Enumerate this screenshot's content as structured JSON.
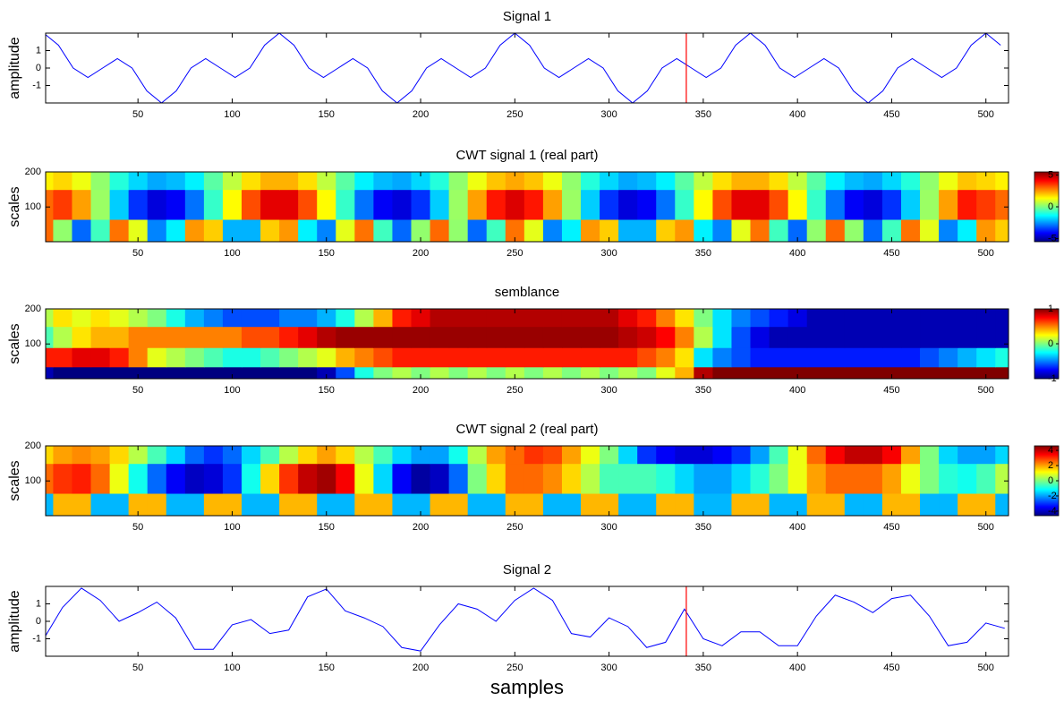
{
  "chart_data": [
    {
      "type": "line",
      "title": "Signal 1",
      "ylabel": "amplitude",
      "color": "#0000ff",
      "marker_x": 341,
      "marker_color": "#ff0000",
      "x": [
        0,
        7.8125,
        15.625,
        23.4375,
        31.25,
        39.0625,
        46.875,
        54.6875,
        62.5,
        70.3125,
        78.125,
        85.9375,
        93.75,
        101.5625,
        109.375,
        117.1875,
        125,
        132.8125,
        140.625,
        148.4375,
        156.25,
        164.0625,
        171.875,
        179.6875,
        187.5,
        195.3125,
        203.125,
        210.9375,
        218.75,
        226.5625,
        234.375,
        242.1875,
        250,
        257.8125,
        265.625,
        273.4375,
        281.25,
        289.0625,
        296.875,
        304.6875,
        312.5,
        320.3125,
        328.125,
        335.9375,
        343.75,
        351.5625,
        359.375,
        367.1875,
        375,
        382.8125,
        390.625,
        398.4375,
        406.25,
        414.0625,
        421.875,
        429.6875,
        437.5,
        445.3125,
        453.125,
        460.9375,
        468.75,
        476.5625,
        484.375,
        492.1875,
        500,
        507.8125
      ],
      "values": [
        2,
        1.31,
        0,
        -0.54,
        0,
        0.54,
        0,
        -1.31,
        -2,
        -1.31,
        0,
        0.54,
        0,
        -0.54,
        0,
        1.31,
        2,
        1.31,
        0,
        -0.54,
        0,
        0.54,
        0,
        -1.31,
        -2,
        -1.31,
        0,
        0.54,
        0,
        -0.54,
        0,
        1.31,
        2,
        1.31,
        0,
        -0.54,
        0,
        0.54,
        0,
        -1.31,
        -2,
        -1.31,
        0,
        0.54,
        0,
        -0.54,
        0,
        1.31,
        2,
        1.31,
        0,
        -0.54,
        0,
        0.54,
        0,
        -1.31,
        -2,
        -1.31,
        0,
        0.54,
        0,
        -0.54,
        0,
        1.31,
        2,
        1.31
      ],
      "xlim": [
        1,
        512
      ],
      "xticks": [
        50,
        100,
        150,
        200,
        250,
        300,
        350,
        400,
        450,
        500
      ],
      "ylim": [
        -2,
        2
      ],
      "yticks": [
        -1,
        0,
        1
      ]
    },
    {
      "type": "heatmap",
      "title": "CWT signal 1 (real part)",
      "ylabel": "scales",
      "colormap": "jet",
      "x": [
        0,
        10,
        20,
        30,
        40,
        50,
        60,
        70,
        80,
        90,
        100,
        110,
        120,
        130,
        140,
        150,
        160,
        170,
        180,
        190,
        200,
        210,
        220,
        230,
        240,
        250,
        260,
        270,
        280,
        290,
        300,
        310,
        320,
        330,
        340,
        350,
        360,
        370,
        380,
        390,
        400,
        410,
        420,
        430,
        440,
        450,
        460,
        470,
        480,
        490,
        500,
        510
      ],
      "ybins": [
        1,
        65,
        150,
        200
      ],
      "z": [
        [
          3,
          0.2,
          -3,
          -0.7,
          2.9,
          1.1,
          -2.7,
          -1.5,
          2.5,
          1.9,
          -2.2,
          -2.2,
          1.9,
          2.5,
          -1.5,
          -2.7,
          1.1,
          2.9,
          -0.7,
          -3,
          0.2,
          3,
          0.2,
          -3,
          -0.7,
          2.9,
          1.1,
          -2.7,
          -1.5,
          2.5,
          1.9,
          -2.2,
          -2.2,
          1.9,
          2.5,
          -1.5,
          -2.7,
          1.1,
          2.9,
          -0.7,
          -3,
          0.2,
          3,
          0.2,
          -3,
          -0.7,
          2.9,
          1.1,
          -2.7,
          -1.5,
          2.5,
          1.9
        ],
        [
          3,
          3.5,
          2.4,
          0.3,
          -1.9,
          -3.6,
          -4.5,
          -4.2,
          -2.9,
          -0.8,
          1.4,
          3.3,
          4.4,
          4.4,
          3.3,
          1.4,
          -0.8,
          -2.9,
          -4.2,
          -4.5,
          -3.6,
          -1.9,
          0.3,
          2.4,
          3.9,
          4.5,
          3.9,
          2.4,
          0.3,
          -1.9,
          -3.6,
          -4.5,
          -4.2,
          -2.9,
          -0.8,
          1.4,
          3.3,
          4.4,
          4.4,
          3.3,
          1.4,
          -0.8,
          -2.9,
          -4.2,
          -4.5,
          -3.6,
          -1.9,
          0.3,
          2.4,
          3.9,
          3.5,
          3
        ],
        [
          1.5,
          1.8,
          1.2,
          0.2,
          -1,
          -1.8,
          -2.3,
          -2.1,
          -1.5,
          -0.4,
          0.7,
          1.7,
          2.2,
          2.2,
          1.7,
          0.7,
          -0.4,
          -1.5,
          -2.1,
          -2.3,
          -1.8,
          -1,
          0.2,
          1.2,
          2,
          2.3,
          2,
          1.2,
          0.2,
          -1,
          -1.8,
          -2.3,
          -2.1,
          -1.5,
          -0.4,
          0.7,
          1.7,
          2.2,
          2.2,
          1.7,
          0.7,
          -0.4,
          -1.5,
          -2.1,
          -2.3,
          -1.8,
          -1,
          0.2,
          1.2,
          2,
          1.8,
          1.5
        ]
      ],
      "zlim": [
        -5.5,
        5.5
      ],
      "zticks": [
        -5,
        0,
        5
      ],
      "xlim": [
        1,
        512
      ],
      "xticks": [
        50,
        100,
        150,
        200,
        250,
        300,
        350,
        400,
        450,
        500
      ],
      "ylim": [
        1,
        200
      ],
      "yticks": [
        100,
        200
      ]
    },
    {
      "type": "heatmap",
      "title": "semblance",
      "ylabel": "scales",
      "colormap": "jet",
      "x": [
        0,
        10,
        20,
        30,
        40,
        50,
        60,
        70,
        80,
        90,
        100,
        110,
        120,
        130,
        140,
        150,
        160,
        170,
        180,
        190,
        200,
        210,
        220,
        230,
        240,
        250,
        260,
        270,
        280,
        290,
        300,
        310,
        320,
        330,
        340,
        350,
        360,
        370,
        380,
        390,
        400,
        410,
        420,
        430,
        440,
        450,
        460,
        470,
        480,
        490,
        500,
        510
      ],
      "ybins": [
        1,
        35,
        90,
        150,
        200
      ],
      "z": [
        [
          -0.9,
          -1,
          -1,
          -1,
          -1,
          -1,
          -1,
          -1,
          -1,
          -1,
          -1,
          -1,
          -1,
          -1,
          -1,
          -0.9,
          -0.6,
          -0.2,
          0,
          0.1,
          0,
          0.1,
          0,
          0.1,
          0,
          0.1,
          0,
          0.1,
          0,
          0.1,
          0,
          0.1,
          0,
          0.2,
          0.4,
          0.9,
          1,
          1,
          1,
          1,
          1,
          1,
          1,
          1,
          1,
          1,
          1,
          1,
          1,
          1,
          1,
          1
        ],
        [
          0.7,
          0.7,
          0.8,
          0.8,
          0.7,
          0.5,
          0.2,
          0.1,
          0,
          -0.1,
          -0.2,
          -0.2,
          -0.1,
          0,
          0.1,
          0.2,
          0.4,
          0.5,
          0.6,
          0.7,
          0.7,
          0.7,
          0.7,
          0.7,
          0.7,
          0.7,
          0.7,
          0.7,
          0.7,
          0.7,
          0.7,
          0.7,
          0.6,
          0.5,
          0.3,
          -0.3,
          -0.5,
          -0.6,
          -0.7,
          -0.7,
          -0.7,
          -0.7,
          -0.7,
          -0.7,
          -0.7,
          -0.7,
          -0.7,
          -0.6,
          -0.5,
          -0.4,
          -0.3,
          -0.2
        ],
        [
          -0.1,
          0.1,
          0.3,
          0.4,
          0.4,
          0.5,
          0.5,
          0.5,
          0.5,
          0.5,
          0.5,
          0.6,
          0.6,
          0.7,
          0.8,
          0.9,
          0.95,
          0.95,
          0.95,
          0.95,
          0.95,
          0.95,
          0.95,
          0.95,
          0.95,
          0.95,
          0.95,
          0.95,
          0.95,
          0.95,
          0.95,
          0.9,
          0.85,
          0.75,
          0.5,
          0.1,
          -0.3,
          -0.6,
          -0.8,
          -0.9,
          -0.9,
          -0.9,
          -0.9,
          -0.9,
          -0.9,
          -0.9,
          -0.9,
          -0.9,
          -0.9,
          -0.9,
          -0.9,
          -0.9
        ],
        [
          0.1,
          0.3,
          0.2,
          0.3,
          0.2,
          0.1,
          0,
          -0.2,
          -0.4,
          -0.5,
          -0.6,
          -0.6,
          -0.6,
          -0.5,
          -0.5,
          -0.4,
          -0.2,
          0.1,
          0.4,
          0.7,
          0.8,
          0.9,
          0.9,
          0.9,
          0.9,
          0.9,
          0.9,
          0.9,
          0.9,
          0.9,
          0.9,
          0.8,
          0.7,
          0.5,
          0.3,
          0,
          -0.3,
          -0.5,
          -0.6,
          -0.7,
          -0.8,
          -0.9,
          -0.9,
          -0.9,
          -0.9,
          -0.9,
          -0.9,
          -0.9,
          -0.9,
          -0.9,
          -0.9,
          -0.9
        ]
      ],
      "zlim": [
        -1,
        1
      ],
      "zticks": [
        -1,
        0,
        1
      ],
      "xlim": [
        1,
        512
      ],
      "xticks": [
        50,
        100,
        150,
        200,
        250,
        300,
        350,
        400,
        450,
        500
      ],
      "ylim": [
        1,
        200
      ],
      "yticks": [
        100,
        200
      ]
    },
    {
      "type": "heatmap",
      "title": "CWT signal 2 (real part)",
      "ylabel": "scales",
      "colormap": "jet",
      "x": [
        0,
        10,
        20,
        30,
        40,
        50,
        60,
        70,
        80,
        90,
        100,
        110,
        120,
        130,
        140,
        150,
        160,
        170,
        180,
        190,
        200,
        210,
        220,
        230,
        240,
        250,
        260,
        270,
        280,
        290,
        300,
        310,
        320,
        330,
        340,
        350,
        360,
        370,
        380,
        390,
        400,
        410,
        420,
        430,
        440,
        450,
        460,
        470,
        480,
        490,
        500,
        510
      ],
      "ybins": [
        1,
        65,
        150,
        200
      ],
      "z": [
        [
          -1.8,
          1.8,
          1.8,
          -1.8,
          -1.8,
          1.8,
          1.8,
          -1.8,
          -1.8,
          1.8,
          1.8,
          -1.8,
          -1.8,
          1.8,
          1.8,
          -1.8,
          -1.8,
          1.8,
          1.8,
          -1.8,
          -1.8,
          1.8,
          1.8,
          -1.8,
          -1.8,
          1.8,
          1.8,
          -1.8,
          -1.8,
          1.8,
          1.8,
          -1.8,
          -1.8,
          1.8,
          1.8,
          -1.8,
          -1.8,
          1.8,
          1.8,
          -1.8,
          -1.8,
          1.8,
          1.8,
          -1.8,
          -1.8,
          1.8,
          1.8,
          -1.8,
          -1.8,
          1.8,
          1.8,
          -1.8
        ],
        [
          2.5,
          3,
          3.2,
          2.5,
          1,
          -1,
          -2.5,
          -3.5,
          -4,
          -3.8,
          -3,
          -1,
          1.5,
          3,
          4,
          4.3,
          3.5,
          1,
          -1.5,
          -3.5,
          -4.3,
          -4,
          -2.5,
          0,
          1.5,
          2.5,
          2.5,
          2.2,
          1.5,
          0.5,
          -0.5,
          -0.5,
          -0.5,
          -0.8,
          -1.5,
          -2,
          -2,
          -1.5,
          -0.8,
          0,
          1,
          2,
          2.5,
          2.5,
          2.5,
          2,
          1,
          0,
          -0.8,
          -1,
          -0.5,
          0.5
        ],
        [
          1.5,
          2,
          2.2,
          2,
          1.5,
          0.5,
          -0.5,
          -1.5,
          -2.5,
          -3,
          -2.5,
          -1.5,
          -0.5,
          0.5,
          1.5,
          2,
          1.5,
          0.5,
          -0.5,
          -1.5,
          -2,
          -2,
          -1,
          0.5,
          2,
          2.5,
          3,
          2.8,
          2,
          1,
          0,
          -1.5,
          -3,
          -3.5,
          -3.8,
          -3.8,
          -3.5,
          -3,
          -2,
          -0.5,
          1,
          2.5,
          3.5,
          4,
          4,
          3.5,
          2,
          0,
          -1.5,
          -2,
          -2,
          -1.5
        ]
      ],
      "zlim": [
        -4.6,
        4.6
      ],
      "zticks": [
        -4,
        -2,
        0,
        2,
        4
      ],
      "xlim": [
        1,
        512
      ],
      "xticks": [
        50,
        100,
        150,
        200,
        250,
        300,
        350,
        400,
        450,
        500
      ],
      "ylim": [
        1,
        200
      ],
      "yticks": [
        100,
        200
      ]
    },
    {
      "type": "line",
      "title": "Signal 2",
      "ylabel": "amplitude",
      "xlabel": "samples",
      "color": "#0000ff",
      "marker_x": 341,
      "marker_color": "#ff0000",
      "x": [
        0,
        10,
        20,
        30,
        40,
        50,
        60,
        70,
        80,
        90,
        100,
        110,
        120,
        130,
        140,
        150,
        160,
        170,
        180,
        190,
        200,
        210,
        220,
        230,
        240,
        250,
        260,
        270,
        280,
        290,
        300,
        310,
        320,
        330,
        340,
        350,
        360,
        370,
        380,
        390,
        400,
        410,
        420,
        430,
        440,
        450,
        460,
        470,
        480,
        490,
        500,
        510
      ],
      "values": [
        -1,
        0.8,
        1.9,
        1.2,
        0,
        0.5,
        1.1,
        0.2,
        -1.6,
        -1.6,
        -0.2,
        0.1,
        -0.7,
        -0.5,
        1.4,
        1.85,
        0.6,
        0.2,
        -0.3,
        -1.5,
        -1.7,
        -0.2,
        1,
        0.7,
        0,
        1.2,
        1.9,
        1.2,
        -0.7,
        -0.9,
        0.2,
        -0.3,
        -1.5,
        -1.2,
        0.7,
        -1,
        -1.4,
        -0.6,
        -0.6,
        -1.4,
        -1.4,
        0.3,
        1.5,
        1.1,
        0.5,
        1.3,
        1.5,
        0.3,
        -1.4,
        -1.2,
        -0.1,
        -0.4
      ],
      "xlim": [
        1,
        512
      ],
      "xticks": [
        50,
        100,
        150,
        200,
        250,
        300,
        350,
        400,
        450,
        500
      ],
      "ylim": [
        -2,
        2
      ],
      "yticks": [
        -1,
        0,
        1
      ]
    }
  ]
}
